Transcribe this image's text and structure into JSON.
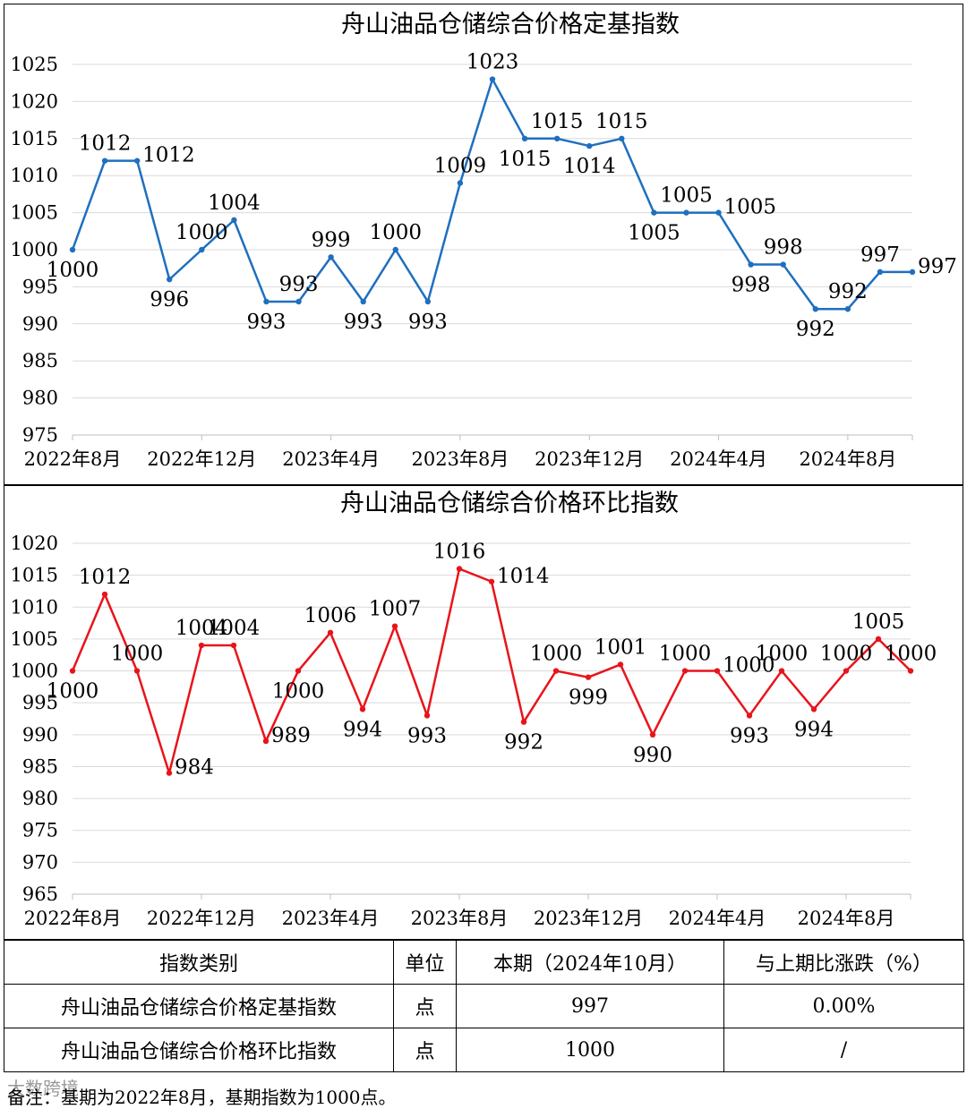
{
  "chart_data": [
    {
      "type": "line",
      "title": "舟山油品仓储综合价格定基指数",
      "color": "#1f6fbf",
      "tick_labels": [
        "2022年8月",
        "2022年12月",
        "2023年4月",
        "2023年8月",
        "2023年12月",
        "2024年4月",
        "2024年8月"
      ],
      "tick_indices": [
        0,
        4,
        8,
        12,
        16,
        20,
        24
      ],
      "ylim": [
        975,
        1025
      ],
      "yticks": [
        975,
        980,
        985,
        990,
        995,
        1000,
        1005,
        1010,
        1015,
        1020,
        1025
      ],
      "series": [
        {
          "name": "定基指数",
          "values": [
            1000,
            1012,
            1012,
            996,
            1000,
            1004,
            993,
            993,
            999,
            993,
            1000,
            993,
            1009,
            1023,
            1015,
            1015,
            1014,
            1015,
            1005,
            1005,
            1005,
            998,
            998,
            992,
            992,
            997,
            997
          ],
          "labels": [
            "1000",
            "1012",
            "1012",
            "996",
            "1000",
            "1004",
            "993",
            "993",
            "999",
            "993",
            "1000",
            "993",
            "1009",
            "1023",
            "1015",
            "1015",
            "1014",
            "1015",
            "1005",
            "1005",
            "1005",
            "998",
            "998",
            "992",
            "992",
            "997",
            "997"
          ]
        }
      ]
    },
    {
      "type": "line",
      "title": "舟山油品仓储综合价格环比指数",
      "color": "#e8141b",
      "tick_labels": [
        "2022年8月",
        "2022年12月",
        "2023年4月",
        "2023年8月",
        "2023年12月",
        "2024年4月",
        "2024年8月"
      ],
      "tick_indices": [
        0,
        4,
        8,
        12,
        16,
        20,
        24
      ],
      "ylim": [
        965,
        1020
      ],
      "yticks": [
        965,
        970,
        975,
        980,
        985,
        990,
        995,
        1000,
        1005,
        1010,
        1015,
        1020
      ],
      "series": [
        {
          "name": "环比指数",
          "values": [
            1000,
            1012,
            1000,
            984,
            1004,
            1004,
            989,
            1000,
            1006,
            994,
            1007,
            993,
            1016,
            1014,
            992,
            1000,
            999,
            1001,
            990,
            1000,
            1000,
            993,
            1000,
            994,
            1000,
            1005,
            1000
          ],
          "labels": [
            "1000",
            "1012",
            "1000",
            "984",
            "1004",
            "1004",
            "989",
            "1000",
            "1006",
            "994",
            "1007",
            "993",
            "1016",
            "1014",
            "992",
            "1000",
            "999",
            "1001",
            "990",
            "1000",
            "1000",
            "993",
            "1000",
            "994",
            "1000",
            "1005",
            "1000"
          ]
        }
      ]
    }
  ],
  "table": {
    "headers": [
      "指数类别",
      "单位",
      "本期（2024年10月）",
      "与上期比涨跌（%）"
    ],
    "rows": [
      [
        "舟山油品仓储综合价格定基指数",
        "点",
        "997",
        "0.00%"
      ],
      [
        "舟山油品仓储综合价格环比指数",
        "点",
        "1000",
        "/"
      ]
    ]
  },
  "footnote": "备注：基期为2022年8月，基期指数为1000点。",
  "watermark": "大数跨境"
}
